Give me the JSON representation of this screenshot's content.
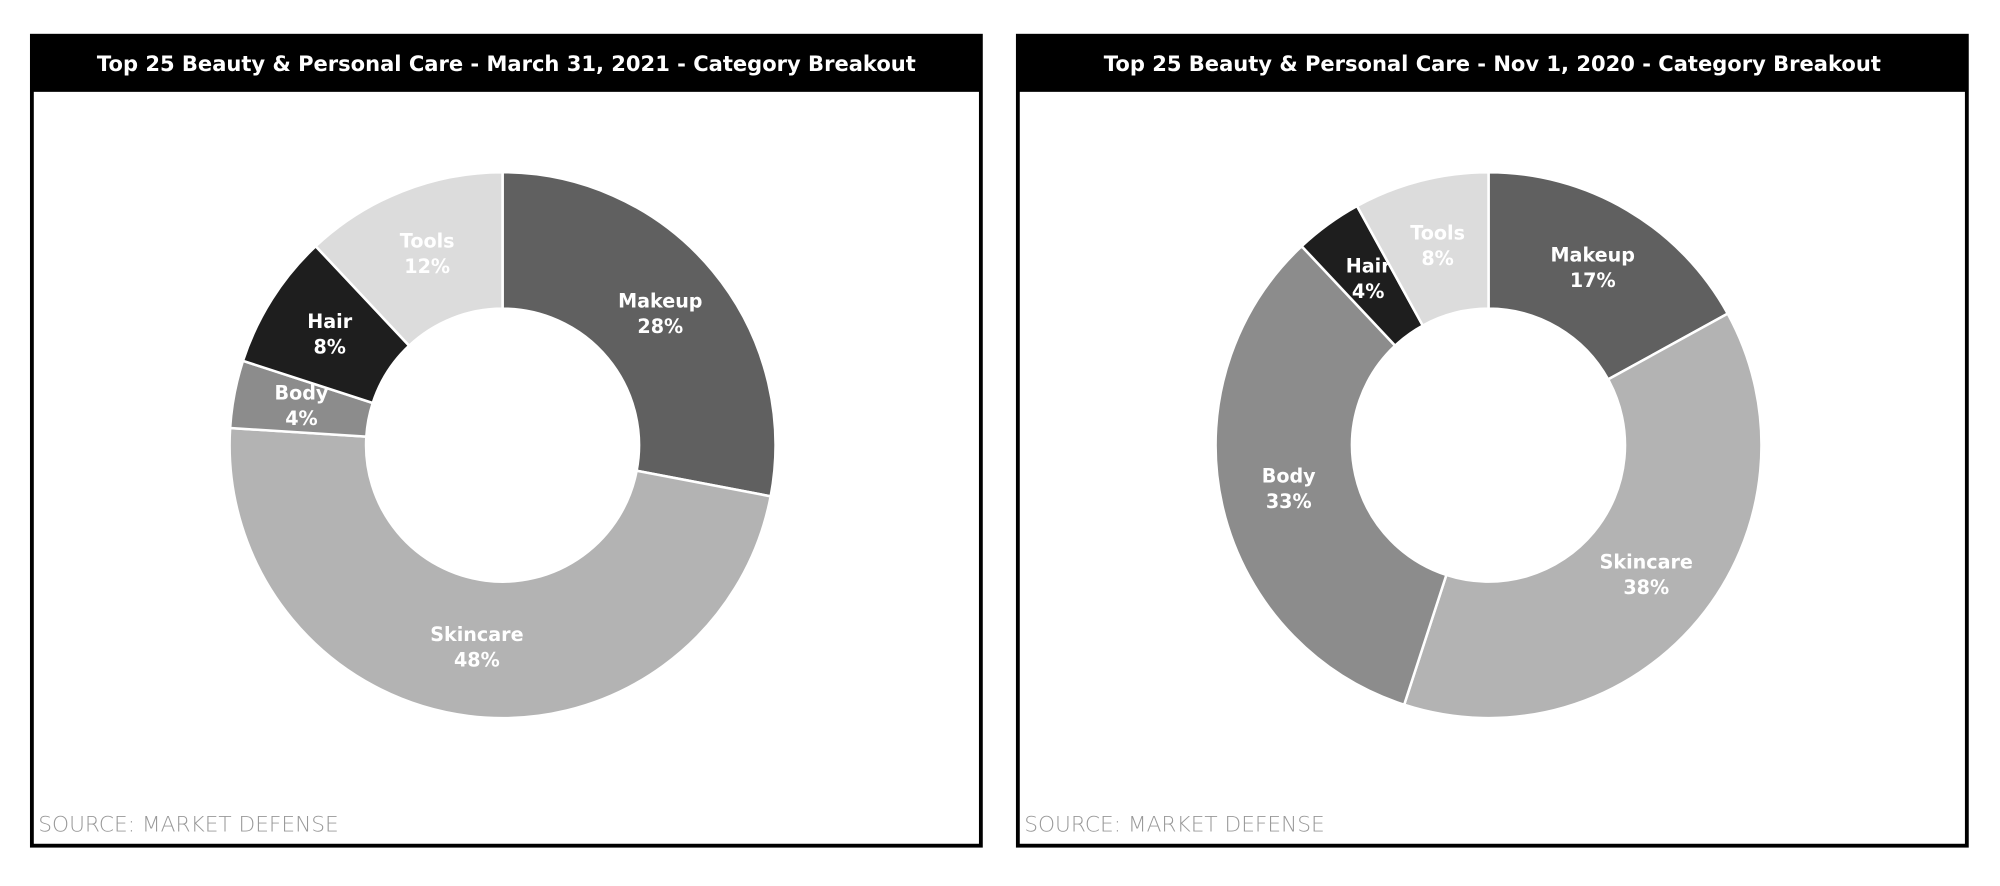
{
  "chart_data": [
    {
      "type": "pie",
      "title": "Top 25 Beauty & Personal Care - March 31, 2021 - Category Breakout",
      "categories": [
        "Makeup",
        "Skincare",
        "Body",
        "Hair",
        "Tools"
      ],
      "values": [
        28,
        48,
        4,
        8,
        12
      ],
      "value_labels": [
        "28%",
        "48%",
        "4%",
        "8%",
        "12%"
      ],
      "colors": [
        "#606060",
        "#b3b3b3",
        "#8c8c8c",
        "#1e1e1e",
        "#dcdcdc"
      ],
      "source": "SOURCE: MARKET DEFENSE"
    },
    {
      "type": "pie",
      "title": "Top 25 Beauty & Personal Care - Nov 1, 2020 - Category Breakout",
      "categories": [
        "Makeup",
        "Skincare",
        "Body",
        "Hair",
        "Tools"
      ],
      "values": [
        17,
        38,
        33,
        4,
        8
      ],
      "value_labels": [
        "17%",
        "38%",
        "33%",
        "4%",
        "8%"
      ],
      "colors": [
        "#606060",
        "#b3b3b3",
        "#8c8c8c",
        "#1e1e1e",
        "#dcdcdc"
      ],
      "source": "SOURCE: MARKET DEFENSE"
    }
  ]
}
